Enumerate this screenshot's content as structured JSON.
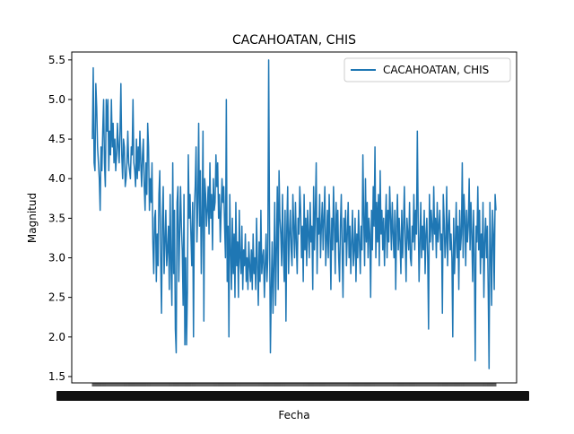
{
  "chart_data": {
    "type": "line",
    "title": "CACAHOATAN, CHIS",
    "xlabel": "Fecha",
    "ylabel": "Magnitud",
    "ylim": [
      1.42,
      5.6
    ],
    "yticks": [
      1.5,
      2.0,
      2.5,
      3.0,
      3.5,
      4.0,
      4.5,
      5.0,
      5.5
    ],
    "ytick_labels": [
      "1.5",
      "2.0",
      "2.5",
      "3.0",
      "3.5",
      "4.0",
      "4.5",
      "5.0",
      "5.5"
    ],
    "x_tick_count": 460,
    "x_tick_labels_illegible": true,
    "series_color": "#1f77b4",
    "legend_position": "upper right",
    "series": [
      {
        "name": "CACAHOATAN, CHIS",
        "values": [
          4.5,
          5.4,
          4.2,
          4.1,
          5.2,
          4.9,
          4.4,
          4.2,
          4.0,
          3.6,
          4.4,
          4.1,
          4.6,
          5.0,
          4.2,
          3.9,
          5.0,
          4.6,
          5.0,
          4.1,
          4.6,
          4.3,
          5.0,
          4.4,
          4.7,
          4.2,
          4.5,
          4.1,
          4.3,
          4.7,
          4.4,
          4.2,
          4.6,
          5.2,
          4.3,
          4.0,
          4.5,
          4.4,
          3.9,
          4.0,
          4.2,
          4.6,
          4.2,
          4.1,
          4.0,
          4.4,
          4.3,
          5.0,
          4.2,
          4.1,
          3.9,
          4.5,
          4.0,
          4.4,
          4.1,
          4.6,
          4.2,
          3.9,
          4.3,
          4.5,
          3.9,
          3.6,
          4.2,
          3.8,
          4.7,
          4.4,
          3.6,
          4.0,
          3.7,
          4.2,
          3.2,
          2.8,
          3.5,
          3.6,
          2.7,
          3.3,
          2.9,
          3.8,
          4.1,
          3.0,
          2.3,
          3.5,
          3.9,
          2.8,
          3.2,
          3.6,
          2.9,
          3.1,
          3.4,
          2.6,
          3.8,
          2.9,
          2.4,
          4.2,
          2.8,
          3.6,
          2.1,
          1.8,
          3.7,
          3.9,
          2.7,
          3.3,
          3.9,
          3.4,
          3.1,
          2.4,
          3.8,
          1.9,
          3.0,
          1.9,
          2.6,
          4.3,
          3.5,
          3.8,
          3.3,
          2.9,
          3.7,
          2.0,
          3.6,
          3.9,
          4.4,
          3.2,
          3.7,
          4.7,
          3.4,
          4.1,
          2.8,
          3.5,
          4.6,
          2.2,
          4.0,
          3.8,
          3.4,
          3.6,
          3.9,
          3.3,
          4.2,
          3.5,
          3.8,
          3.1,
          4.0,
          3.6,
          3.7,
          4.3,
          3.9,
          4.2,
          3.5,
          3.8,
          3.2,
          3.6,
          4.0,
          3.7,
          3.9,
          3.4,
          3.0,
          5.0,
          2.7,
          3.4,
          2.0,
          3.8,
          3.1,
          2.6,
          3.5,
          2.8,
          3.3,
          2.5,
          3.7,
          2.9,
          3.2,
          2.5,
          3.6,
          3.0,
          2.8,
          3.4,
          2.6,
          3.1,
          2.9,
          3.3,
          2.7,
          3.0,
          2.6,
          3.2,
          2.9,
          2.7,
          3.1,
          2.6,
          3.3,
          2.8,
          3.0,
          2.6,
          3.5,
          2.9,
          2.4,
          3.2,
          2.7,
          3.6,
          2.8,
          3.0,
          3.1,
          2.5,
          2.9,
          3.3,
          2.7,
          3.0,
          5.5,
          3.4,
          1.8,
          2.6,
          3.2,
          2.3,
          2.9,
          3.7,
          2.4,
          3.1,
          3.9,
          2.6,
          4.1,
          3.5,
          3.3,
          2.9,
          3.8,
          3.1,
          2.7,
          3.6,
          2.2,
          3.4,
          3.9,
          2.8,
          3.3,
          3.6,
          3.1,
          2.9,
          3.8,
          3.4,
          3.0,
          3.7,
          3.2,
          2.8,
          3.5,
          3.3,
          3.9,
          3.6,
          3.0,
          3.4,
          2.7,
          3.8,
          3.1,
          3.5,
          2.9,
          3.6,
          3.3,
          3.0,
          3.7,
          3.2,
          3.4,
          2.6,
          3.9,
          3.1,
          3.6,
          4.2,
          2.8,
          3.5,
          3.3,
          3.8,
          3.0,
          3.4,
          3.7,
          3.1,
          3.5,
          3.9,
          2.9,
          3.2,
          3.6,
          3.0,
          3.8,
          3.3,
          2.6,
          3.5,
          3.1,
          3.9,
          3.4,
          2.8,
          3.7,
          3.2,
          3.6,
          3.0,
          2.7,
          3.4,
          3.8,
          3.1,
          2.5,
          3.5,
          3.2,
          3.6,
          2.9,
          3.3,
          3.7,
          3.0,
          3.4,
          2.8,
          3.2,
          3.6,
          2.9,
          3.1,
          3.5,
          2.7,
          3.3,
          3.0,
          3.6,
          3.2,
          2.8,
          3.4,
          3.1,
          4.3,
          3.5,
          2.9,
          4.0,
          3.2,
          3.7,
          3.0,
          3.5,
          3.3,
          2.5,
          3.6,
          3.1,
          3.9,
          3.4,
          4.4,
          3.0,
          3.7,
          3.2,
          3.8,
          2.9,
          4.1,
          3.3,
          3.6,
          3.1,
          3.5,
          2.9,
          3.4,
          3.8,
          3.0,
          3.6,
          3.2,
          3.9,
          3.5,
          3.1,
          3.7,
          3.3,
          3.0,
          3.6,
          2.6,
          3.4,
          3.8,
          3.1,
          3.5,
          3.2,
          2.8,
          3.6,
          3.0,
          3.4,
          3.9,
          3.2,
          2.7,
          3.5,
          3.3,
          3.1,
          3.7,
          3.0,
          2.9,
          3.4,
          3.2,
          3.8,
          3.1,
          3.6,
          3.3,
          4.6,
          3.5,
          2.7,
          3.2,
          3.7,
          3.0,
          3.4,
          3.1,
          3.6,
          2.8,
          3.3,
          3.5,
          3.0,
          2.1,
          3.8,
          3.2,
          3.6,
          3.4,
          3.1,
          3.9,
          3.3,
          3.5,
          3.0,
          3.7,
          3.2,
          3.4,
          3.6,
          3.1,
          3.3,
          2.3,
          3.8,
          3.5,
          3.0,
          3.2,
          3.9,
          2.9,
          3.4,
          3.6,
          3.1,
          3.3,
          3.0,
          2.0,
          3.5,
          2.8,
          3.2,
          3.7,
          3.0,
          3.4,
          2.6,
          3.6,
          3.1,
          3.3,
          4.2,
          3.0,
          3.8,
          3.5,
          2.9,
          3.6,
          3.2,
          3.4,
          4.0,
          3.1,
          3.7,
          3.3,
          2.7,
          3.6,
          3.0,
          1.7,
          3.4,
          3.2,
          3.9,
          3.1,
          3.6,
          2.8,
          3.3,
          3.0,
          3.7,
          2.5,
          3.2,
          3.5,
          3.0,
          3.4,
          2.6,
          1.6,
          3.7,
          3.1,
          2.4,
          3.6,
          3.3,
          2.6,
          3.8,
          3.6
        ]
      }
    ]
  }
}
